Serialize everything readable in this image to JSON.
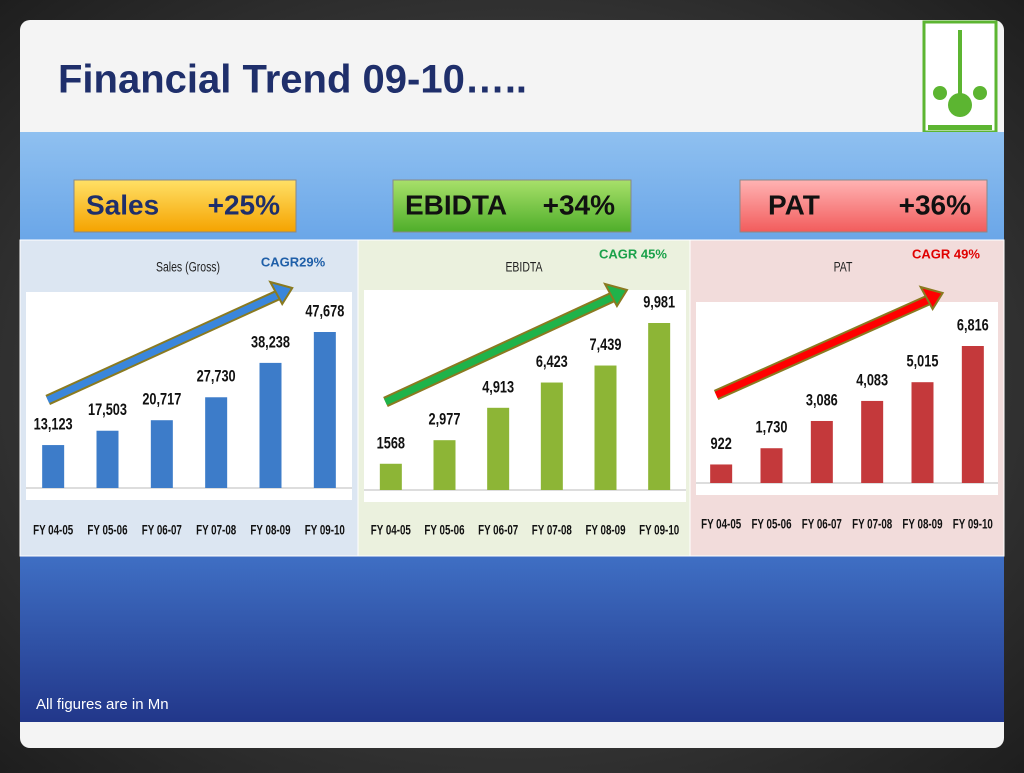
{
  "title": "Financial Trend 09-10…..",
  "badges": [
    {
      "label": "Sales",
      "growth": "+25%"
    },
    {
      "label": "EBIDTA",
      "growth": "+34%"
    },
    {
      "label": "PAT",
      "growth": "+36%"
    }
  ],
  "footnote": "All figures are in Mn",
  "chart_data": [
    {
      "type": "bar",
      "title": "Sales (Gross)",
      "annotation": "CAGR29%",
      "annotation_color": "#1f5fa8",
      "categories": [
        "FY 04-05",
        "FY 05-06",
        "FY 06-07",
        "FY 07-08",
        "FY 08-09",
        "FY 09-10"
      ],
      "values": [
        13123,
        17503,
        20717,
        27730,
        38238,
        47678
      ],
      "value_labels": [
        "13,123",
        "17,503",
        "20,717",
        "27,730",
        "38,238",
        "47,678"
      ],
      "color": "#3d7cc9"
    },
    {
      "type": "bar",
      "title": "EBIDTA",
      "annotation": "CAGR 45%",
      "annotation_color": "#1aa14a",
      "categories": [
        "FY 04-05",
        "FY 05-06",
        "FY 06-07",
        "FY 07-08",
        "FY 08-09",
        "FY 09-10"
      ],
      "values": [
        1568,
        2977,
        4913,
        6423,
        7439,
        9981
      ],
      "value_labels": [
        "1568",
        "2,977",
        "4,913",
        "6,423",
        "7,439",
        "9,981"
      ],
      "color": "#8db536"
    },
    {
      "type": "bar",
      "title": "PAT",
      "annotation": "CAGR 49%",
      "annotation_color": "#e00000",
      "categories": [
        "FY 04-05",
        "FY 05-06",
        "FY 06-07",
        "FY 07-08",
        "FY 08-09",
        "FY 09-10"
      ],
      "values": [
        922,
        1730,
        3086,
        4083,
        5015,
        6816
      ],
      "value_labels": [
        "922",
        "1,730",
        "3,086",
        "4,083",
        "5,015",
        "6,816"
      ],
      "color": "#c4393b"
    }
  ]
}
